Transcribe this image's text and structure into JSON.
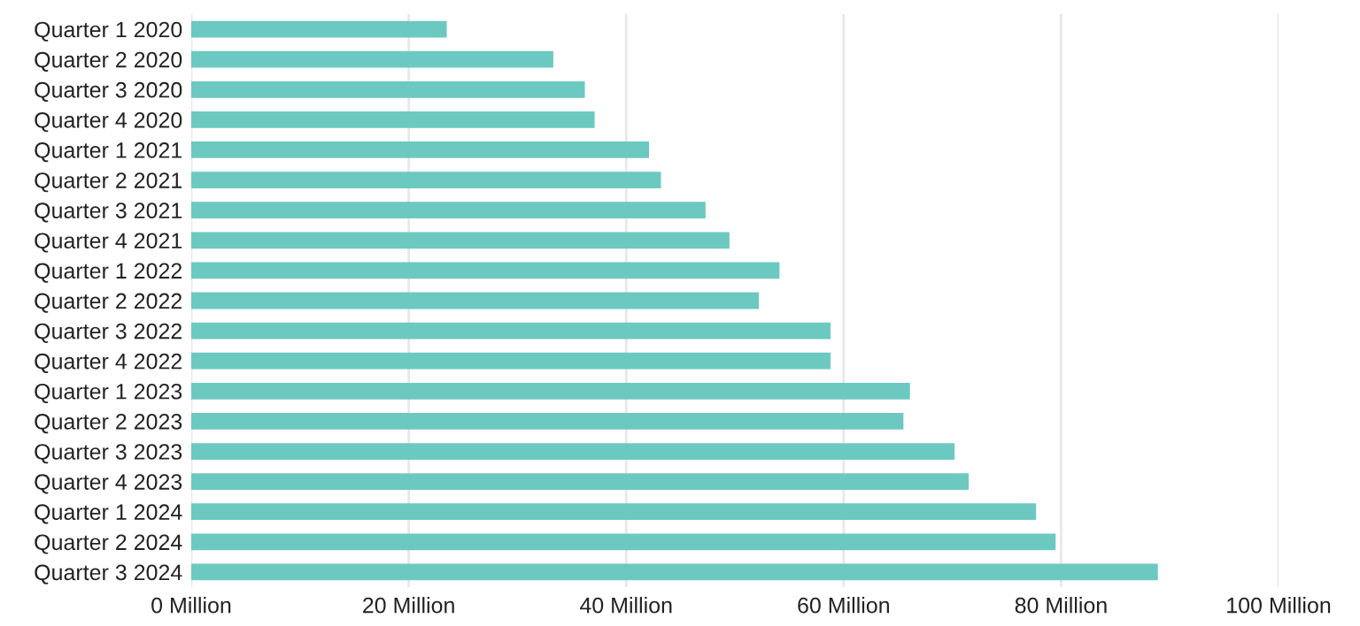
{
  "chart_data": {
    "type": "bar",
    "orientation": "horizontal",
    "categories": [
      "Quarter 1 2020",
      "Quarter 2 2020",
      "Quarter 3 2020",
      "Quarter 4 2020",
      "Quarter 1 2021",
      "Quarter 2 2021",
      "Quarter 3 2021",
      "Quarter 4 2021",
      "Quarter 1 2022",
      "Quarter 2 2022",
      "Quarter 3 2022",
      "Quarter 4 2022",
      "Quarter 1 2023",
      "Quarter 2 2023",
      "Quarter 3 2023",
      "Quarter 4 2023",
      "Quarter 1 2024",
      "Quarter 2 2024",
      "Quarter 3 2024"
    ],
    "values": [
      23.5,
      33.3,
      36.2,
      37.1,
      42.1,
      43.2,
      47.3,
      49.5,
      54.1,
      52.2,
      58.8,
      58.8,
      66.1,
      65.5,
      70.2,
      71.5,
      77.7,
      79.5,
      88.9
    ],
    "color": "#6cc9c1",
    "xlim": [
      0,
      100
    ],
    "xticks": [
      {
        "value": 0,
        "label": "0 Million"
      },
      {
        "value": 20,
        "label": "20 Million"
      },
      {
        "value": 40,
        "label": "40 Million"
      },
      {
        "value": 60,
        "label": "60 Million"
      },
      {
        "value": 80,
        "label": "80 Million"
      },
      {
        "value": 100,
        "label": "100 Million"
      }
    ],
    "grid": "x",
    "legend": false
  }
}
